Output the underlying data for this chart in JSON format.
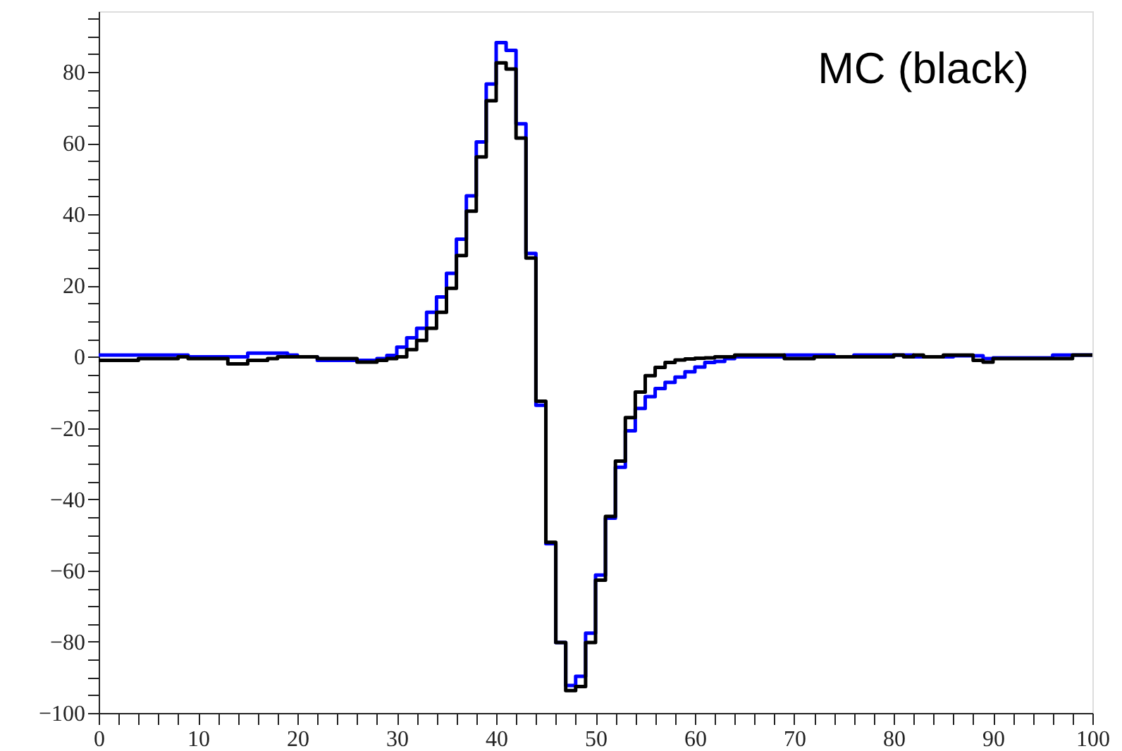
{
  "chart_data": {
    "type": "histogram",
    "bins": [
      0,
      1,
      2,
      3,
      4,
      5,
      6,
      7,
      8,
      9,
      10,
      11,
      12,
      13,
      14,
      15,
      16,
      17,
      18,
      19,
      20,
      21,
      22,
      23,
      24,
      25,
      26,
      27,
      28,
      29,
      30,
      31,
      32,
      33,
      34,
      35,
      36,
      37,
      38,
      39,
      40,
      41,
      42,
      43,
      44,
      45,
      46,
      47,
      48,
      49,
      50,
      51,
      52,
      53,
      54,
      55,
      56,
      57,
      58,
      59,
      60,
      61,
      62,
      63,
      64,
      65,
      66,
      67,
      68,
      69,
      70,
      71,
      72,
      73,
      74,
      75,
      76,
      77,
      78,
      79,
      80,
      81,
      82,
      83,
      84,
      85,
      86,
      87,
      88,
      89,
      90,
      91,
      92,
      93,
      94,
      95,
      96,
      97,
      98,
      99,
      100
    ],
    "series": [
      {
        "color": "#0000ff",
        "values": [
          0.5,
          0.5,
          0.5,
          0.5,
          0.5,
          0.5,
          0.5,
          0.5,
          0.5,
          0,
          0,
          0,
          0,
          0,
          0,
          1,
          1,
          1,
          1,
          0.5,
          0,
          0,
          -1,
          -1,
          -1,
          -1,
          -1,
          -1,
          -0.5,
          0.4,
          2.7,
          5.3,
          8,
          12.5,
          16.8,
          23.4,
          33,
          45.2,
          60.3,
          76.6,
          88.2,
          86,
          65.4,
          29,
          -13.6,
          -52.5,
          -80.2,
          -92.3,
          -89.7,
          -77.6,
          -61.3,
          -45.3,
          -31,
          -20.8,
          -14.5,
          -11.2,
          -8.9,
          -7.2,
          -5.7,
          -4.2,
          -2.9,
          -1.6,
          -1.3,
          -0.5,
          0,
          0,
          0,
          0,
          0,
          0.5,
          0.5,
          0.5,
          0.5,
          0.5,
          0,
          0,
          0.5,
          0.5,
          0.5,
          0.5,
          0.5,
          0.5,
          0,
          0,
          0,
          0,
          0.3,
          0.3,
          0.3,
          -0.5,
          -0.3,
          -0.3,
          -0.3,
          -0.3,
          -0.3,
          -0.3,
          0.5,
          0.5,
          0.5,
          0.5
        ]
      },
      {
        "color": "#000000",
        "values": [
          -1,
          -1,
          -1,
          -1,
          -0.5,
          -0.5,
          -0.5,
          -0.5,
          0,
          -0.5,
          -0.5,
          -0.5,
          -0.5,
          -2,
          -2,
          -1,
          -1,
          -0.5,
          0,
          0,
          0,
          0,
          -0.5,
          -0.5,
          -0.5,
          -0.5,
          -1.5,
          -1.5,
          -1,
          -0.5,
          0,
          2,
          4.6,
          8,
          12.5,
          19.2,
          28.4,
          40.9,
          56.1,
          71.9,
          82.5,
          80.8,
          61.4,
          27.7,
          -12.5,
          -52.1,
          -80.2,
          -93.7,
          -92.6,
          -80.2,
          -62.7,
          -44.8,
          -29.3,
          -17.1,
          -9.9,
          -5.3,
          -3,
          -1.6,
          -0.9,
          -0.6,
          -0.4,
          -0.3,
          0,
          0,
          0.5,
          0.5,
          0.5,
          0.5,
          0.5,
          -0.5,
          -0.5,
          -0.5,
          0,
          0,
          0,
          0,
          0,
          0,
          0,
          0,
          0.5,
          0,
          0.5,
          0,
          0,
          0.5,
          0.5,
          0.5,
          -1,
          -1.5,
          -0.5,
          -0.5,
          -0.5,
          -0.5,
          -0.5,
          -0.5,
          -0.5,
          -0.5,
          0.5,
          0.5
        ]
      }
    ],
    "xlim": [
      0,
      100
    ],
    "ylim": [
      -100,
      97
    ],
    "xticks": [
      0,
      {
        "value": 2,
        "label": null
      },
      {
        "value": 4,
        "label": null
      },
      {
        "value": 6,
        "label": null
      },
      {
        "value": 8,
        "label": null
      },
      10,
      {
        "value": 12,
        "label": null
      },
      {
        "value": 14,
        "label": null
      },
      {
        "value": 16,
        "label": null
      },
      {
        "value": 18,
        "label": null
      },
      20,
      {
        "value": 22,
        "label": null
      },
      {
        "value": 24,
        "label": null
      },
      {
        "value": 26,
        "label": null
      },
      {
        "value": 28,
        "label": null
      },
      30,
      {
        "value": 32,
        "label": null
      },
      {
        "value": 34,
        "label": null
      },
      {
        "value": 36,
        "label": null
      },
      {
        "value": 38,
        "label": null
      },
      40,
      {
        "value": 42,
        "label": null
      },
      {
        "value": 44,
        "label": null
      },
      {
        "value": 46,
        "label": null
      },
      {
        "value": 48,
        "label": null
      },
      50,
      {
        "value": 52,
        "label": null
      },
      {
        "value": 54,
        "label": null
      },
      {
        "value": 56,
        "label": null
      },
      {
        "value": 58,
        "label": null
      },
      60,
      {
        "value": 62,
        "label": null
      },
      {
        "value": 64,
        "label": null
      },
      {
        "value": 66,
        "label": null
      },
      {
        "value": 68,
        "label": null
      },
      70,
      {
        "value": 72,
        "label": null
      },
      {
        "value": 74,
        "label": null
      },
      {
        "value": 76,
        "label": null
      },
      {
        "value": 78,
        "label": null
      },
      80,
      {
        "value": 82,
        "label": null
      },
      {
        "value": 84,
        "label": null
      },
      {
        "value": 86,
        "label": null
      },
      {
        "value": 88,
        "label": null
      },
      90,
      {
        "value": 92,
        "label": null
      },
      {
        "value": 94,
        "label": null
      },
      {
        "value": 96,
        "label": null
      },
      {
        "value": 98,
        "label": null
      },
      100
    ],
    "yticks": [
      -100,
      {
        "value": -95,
        "label": null
      },
      {
        "value": -90,
        "label": null
      },
      {
        "value": -85,
        "label": null
      },
      -80,
      {
        "value": -75,
        "label": null
      },
      {
        "value": -70,
        "label": null
      },
      {
        "value": -65,
        "label": null
      },
      -60,
      {
        "value": -55,
        "label": null
      },
      {
        "value": -50,
        "label": null
      },
      {
        "value": -45,
        "label": null
      },
      -40,
      {
        "value": -35,
        "label": null
      },
      {
        "value": -30,
        "label": null
      },
      {
        "value": -25,
        "label": null
      },
      -20,
      {
        "value": -15,
        "label": null
      },
      {
        "value": -10,
        "label": null
      },
      {
        "value": -5,
        "label": null
      },
      0,
      {
        "value": 5,
        "label": null
      },
      {
        "value": 10,
        "label": null
      },
      {
        "value": 15,
        "label": null
      },
      20,
      {
        "value": 25,
        "label": null
      },
      {
        "value": 30,
        "label": null
      },
      {
        "value": 35,
        "label": null
      },
      40,
      {
        "value": 45,
        "label": null
      },
      {
        "value": 50,
        "label": null
      },
      {
        "value": 55,
        "label": null
      },
      60,
      {
        "value": 65,
        "label": null
      },
      {
        "value": 70,
        "label": null
      },
      {
        "value": 75,
        "label": null
      },
      80,
      {
        "value": 85,
        "label": null
      },
      {
        "value": 90,
        "label": null
      },
      {
        "value": 95,
        "label": null
      }
    ],
    "grid": false,
    "legend": false,
    "annotations": [
      "MC (black)"
    ]
  }
}
